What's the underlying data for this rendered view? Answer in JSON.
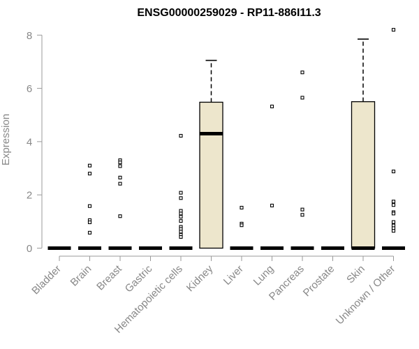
{
  "chart_data": {
    "type": "box",
    "title": "ENSG00000259029 - RP11-886I11.3",
    "xlabel": "",
    "ylabel": "Expression",
    "ylim": [
      0,
      8.2
    ],
    "yticks": [
      0,
      2,
      4,
      6,
      8
    ],
    "grid": false,
    "legend": "none",
    "box_fill": "#ede6cc",
    "categories": [
      "Bladder",
      "Brain",
      "Breast",
      "Gastric",
      "Hematopoietic cells",
      "Kidney",
      "Liver",
      "Lung",
      "Pancreas",
      "Prostate",
      "Skin",
      "Unknown / Other"
    ],
    "boxes": [
      {
        "category": "Bladder",
        "min": 0,
        "q1": 0,
        "median": 0,
        "q3": 0,
        "max": 0,
        "outliers": []
      },
      {
        "category": "Brain",
        "min": 0,
        "q1": 0,
        "median": 0,
        "q3": 0,
        "max": 0,
        "outliers": [
          3.1,
          2.8,
          1.58,
          1.05,
          0.97,
          0.58
        ]
      },
      {
        "category": "Breast",
        "min": 0,
        "q1": 0,
        "median": 0,
        "q3": 0,
        "max": 0,
        "outliers": [
          3.3,
          3.22,
          3.08,
          2.65,
          2.42,
          1.2
        ]
      },
      {
        "category": "Gastric",
        "min": 0,
        "q1": 0,
        "median": 0,
        "q3": 0,
        "max": 0,
        "outliers": []
      },
      {
        "category": "Hematopoietic cells",
        "min": 0,
        "q1": 0,
        "median": 0,
        "q3": 0,
        "max": 0,
        "outliers": [
          4.22,
          2.08,
          1.88,
          1.4,
          1.3,
          1.18,
          1.02,
          0.8,
          0.72,
          0.62,
          0.5,
          0.42
        ]
      },
      {
        "category": "Kidney",
        "min": 0,
        "q1": 0,
        "median": 4.3,
        "q3": 5.48,
        "max": 7.05,
        "outliers": []
      },
      {
        "category": "Liver",
        "min": 0,
        "q1": 0,
        "median": 0,
        "q3": 0,
        "max": 0,
        "outliers": [
          1.52,
          0.92,
          0.86
        ]
      },
      {
        "category": "Lung",
        "min": 0,
        "q1": 0,
        "median": 0,
        "q3": 0,
        "max": 0,
        "outliers": [
          5.32,
          1.6
        ]
      },
      {
        "category": "Pancreas",
        "min": 0,
        "q1": 0,
        "median": 0,
        "q3": 0,
        "max": 0,
        "outliers": [
          6.6,
          5.65,
          1.45,
          1.25
        ]
      },
      {
        "category": "Prostate",
        "min": 0,
        "q1": 0,
        "median": 0,
        "q3": 0,
        "max": 0,
        "outliers": []
      },
      {
        "category": "Skin",
        "min": 0,
        "q1": 0,
        "median": 0,
        "q3": 5.5,
        "max": 7.85,
        "outliers": []
      },
      {
        "category": "Unknown / Other",
        "min": 0,
        "q1": 0,
        "median": 0,
        "q3": 0,
        "max": 0,
        "outliers": [
          8.2,
          2.88,
          1.75,
          1.62,
          1.35,
          1.3,
          0.98,
          0.85,
          0.75,
          0.65
        ]
      }
    ]
  }
}
